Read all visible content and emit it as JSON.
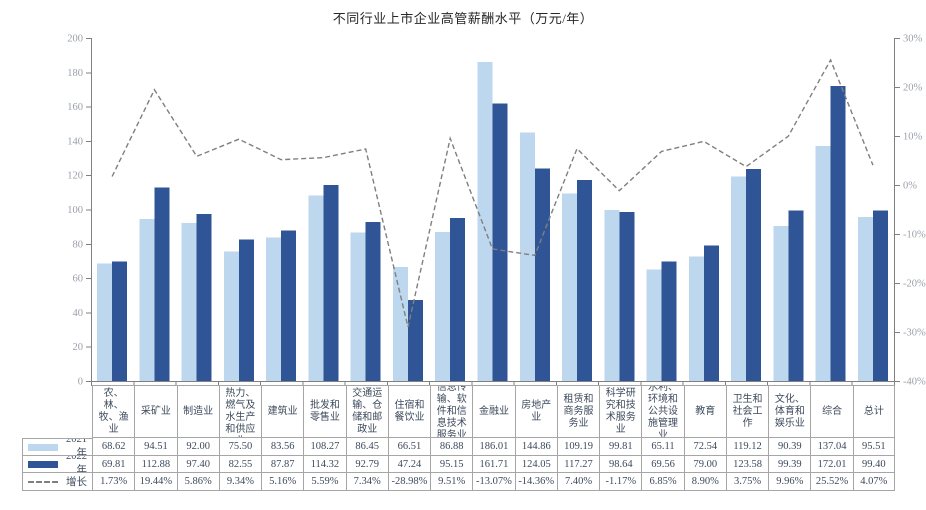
{
  "title": "不同行业上市企业高管薪酬水平（万元/年）",
  "colors": {
    "bar_2021": "#BDD7EE",
    "bar_2022": "#2F5597",
    "growth_line": "#7F7F7F",
    "axis_text": "#9AA0AA",
    "axis_line": "#808080",
    "table_text": "#3D4A5C",
    "table_border": "#A6A6A6",
    "title_text": "#262626"
  },
  "chart_data": {
    "type": "bar",
    "title": "不同行业上市企业高管薪酬水平（万元/年）",
    "categories": [
      "农、林、牧、渔业",
      "采矿业",
      "制造业",
      "电力、热力、燃气及水生产和供应业",
      "建筑业",
      "批发和零售业",
      "交通运输、仓储和邮政业",
      "住宿和餐饮业",
      "信息传输、软件和信息技术服务业",
      "金融业",
      "房地产业",
      "租赁和商务服务业",
      "科学研究和技术服务业",
      "水利、环境和公共设施管理业",
      "教育",
      "卫生和社会工作",
      "文化、体育和娱乐业",
      "综合",
      "总计"
    ],
    "series": [
      {
        "name": "2021年",
        "type": "bar",
        "color": "#BDD7EE",
        "values": [
          68.62,
          94.51,
          92.0,
          75.5,
          83.56,
          108.27,
          86.45,
          66.51,
          86.88,
          186.01,
          144.86,
          109.19,
          99.81,
          65.11,
          72.54,
          119.12,
          90.39,
          137.04,
          95.51
        ]
      },
      {
        "name": "2022年",
        "type": "bar",
        "color": "#2F5597",
        "values": [
          69.81,
          112.88,
          97.4,
          82.55,
          87.87,
          114.32,
          92.79,
          47.24,
          95.15,
          161.71,
          124.05,
          117.27,
          98.64,
          69.56,
          79.0,
          123.58,
          99.39,
          172.01,
          99.4
        ]
      },
      {
        "name": "增长",
        "type": "line",
        "line_style": "dashed",
        "color": "#7F7F7F",
        "axis": "right",
        "values_percent": [
          1.73,
          19.44,
          5.86,
          9.34,
          5.16,
          5.59,
          7.34,
          -28.98,
          9.51,
          -13.07,
          -14.36,
          7.4,
          -1.17,
          6.85,
          8.9,
          3.75,
          9.96,
          25.52,
          4.07
        ]
      }
    ],
    "left_axis": {
      "min": 0,
      "max": 200,
      "step": 20,
      "tick_labels": [
        "0",
        "20",
        "40",
        "60",
        "80",
        "100",
        "120",
        "140",
        "160",
        "180",
        "200"
      ]
    },
    "right_axis": {
      "min": -40,
      "max": 30,
      "step": 10,
      "tick_labels_top_to_bottom": [
        "30%",
        "20%",
        "10%",
        "0%",
        "-10%",
        "-20%",
        "-30%",
        "-40%"
      ]
    },
    "grid": false,
    "legend_position": "table-left"
  },
  "table": {
    "rows": [
      {
        "label": "2021年",
        "swatch": "light-blue-bar",
        "cells": [
          "68.62",
          "94.51",
          "92.00",
          "75.50",
          "83.56",
          "108.27",
          "86.45",
          "66.51",
          "86.88",
          "186.01",
          "144.86",
          "109.19",
          "99.81",
          "65.11",
          "72.54",
          "119.12",
          "90.39",
          "137.04",
          "95.51"
        ]
      },
      {
        "label": "2022年",
        "swatch": "dark-blue-bar",
        "cells": [
          "69.81",
          "112.88",
          "97.40",
          "82.55",
          "87.87",
          "114.32",
          "92.79",
          "47.24",
          "95.15",
          "161.71",
          "124.05",
          "117.27",
          "98.64",
          "69.56",
          "79.00",
          "123.58",
          "99.39",
          "172.01",
          "99.40"
        ]
      },
      {
        "label": "增长",
        "swatch": "gray-dashed-line",
        "cells": [
          "1.73%",
          "19.44%",
          "5.86%",
          "9.34%",
          "5.16%",
          "5.59%",
          "7.34%",
          "-28.98%",
          "9.51%",
          "-13.07%",
          "-14.36%",
          "7.40%",
          "-1.17%",
          "6.85%",
          "8.90%",
          "3.75%",
          "9.96%",
          "25.52%",
          "4.07%"
        ]
      }
    ]
  }
}
